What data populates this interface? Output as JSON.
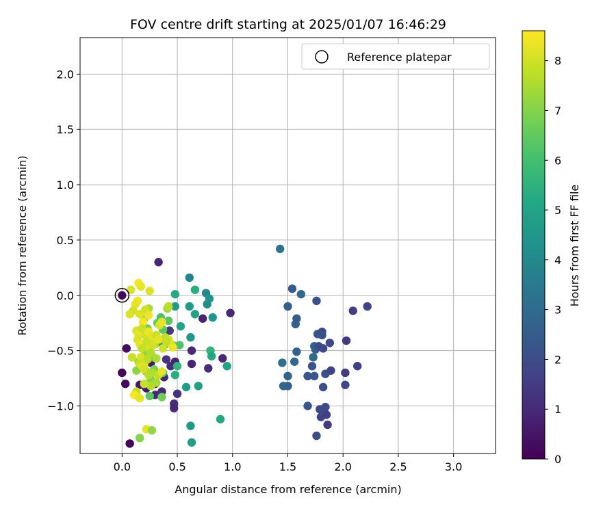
{
  "chart_data": {
    "type": "scatter",
    "title": "FOV centre drift starting at 2025/01/07 16:46:29",
    "xlabel": "Angular distance from reference (arcmin)",
    "ylabel": "Rotation from reference (arcmin)",
    "xlim": [
      -0.38,
      3.38
    ],
    "ylim": [
      -1.43,
      2.33
    ],
    "xticks": [
      0.0,
      0.5,
      1.0,
      1.5,
      2.0,
      2.5,
      3.0
    ],
    "xtick_labels": [
      "0.0",
      "0.5",
      "1.0",
      "1.5",
      "2.0",
      "2.5",
      "3.0"
    ],
    "yticks": [
      -1.0,
      -0.5,
      0.0,
      0.5,
      1.0,
      1.5,
      2.0
    ],
    "ytick_labels": [
      "−1.0",
      "−0.5",
      "0.0",
      "0.5",
      "1.0",
      "1.5",
      "2.0"
    ],
    "grid": true,
    "legend": {
      "placement": "upper-right",
      "entries": [
        "Reference platepar"
      ]
    },
    "colormap": "viridis",
    "colorbar": {
      "label": "Hours from first FF file",
      "min": 0,
      "max": 8.6,
      "ticks": [
        0,
        1,
        2,
        3,
        4,
        5,
        6,
        7,
        8
      ],
      "tick_labels": [
        "0",
        "1",
        "2",
        "3",
        "4",
        "5",
        "6",
        "7",
        "8"
      ]
    },
    "reference_point": {
      "x": 0.0,
      "y": 0.0
    },
    "points": [
      {
        "x": 0.0,
        "y": 0.0,
        "c": 0.2
      },
      {
        "x": 0.0,
        "y": -0.7,
        "c": 0.1
      },
      {
        "x": 0.03,
        "y": -0.8,
        "c": 0.2
      },
      {
        "x": 0.04,
        "y": -0.48,
        "c": 0.3
      },
      {
        "x": 0.07,
        "y": -1.34,
        "c": 0.1
      },
      {
        "x": 0.12,
        "y": -0.9,
        "c": 0.3
      },
      {
        "x": 0.16,
        "y": -0.81,
        "c": 0.5
      },
      {
        "x": 0.22,
        "y": -0.84,
        "c": 0.6
      },
      {
        "x": 0.26,
        "y": -0.61,
        "c": 0.6
      },
      {
        "x": 0.3,
        "y": -0.8,
        "c": 0.7
      },
      {
        "x": 0.33,
        "y": 0.3,
        "c": 0.9
      },
      {
        "x": 0.36,
        "y": -0.87,
        "c": 1.0
      },
      {
        "x": 0.38,
        "y": -0.74,
        "c": 0.9
      },
      {
        "x": 0.4,
        "y": -0.58,
        "c": 1.2
      },
      {
        "x": 0.44,
        "y": -0.64,
        "c": 1.1
      },
      {
        "x": 0.47,
        "y": -0.98,
        "c": 1.1
      },
      {
        "x": 0.47,
        "y": -1.02,
        "c": 1.0
      },
      {
        "x": 0.48,
        "y": -0.6,
        "c": 0.8
      },
      {
        "x": 0.5,
        "y": -0.89,
        "c": 1.3
      },
      {
        "x": 0.63,
        "y": -0.5,
        "c": 1.0
      },
      {
        "x": 0.63,
        "y": -0.62,
        "c": 0.9
      },
      {
        "x": 0.73,
        "y": -0.21,
        "c": 0.8
      },
      {
        "x": 0.78,
        "y": -0.66,
        "c": 1.1
      },
      {
        "x": 0.91,
        "y": -0.57,
        "c": 1.0
      },
      {
        "x": 0.98,
        "y": -0.16,
        "c": 1.0
      },
      {
        "x": 0.3,
        "y": -0.9,
        "c": 1.0
      },
      {
        "x": 0.34,
        "y": -0.42,
        "c": 1.3
      },
      {
        "x": 0.43,
        "y": -0.32,
        "c": 1.4
      },
      {
        "x": 0.58,
        "y": -0.83,
        "c": 4.8
      },
      {
        "x": 0.61,
        "y": 0.16,
        "c": 3.9
      },
      {
        "x": 0.62,
        "y": -0.38,
        "c": 4.5
      },
      {
        "x": 0.62,
        "y": -1.18,
        "c": 4.6
      },
      {
        "x": 0.63,
        "y": -1.33,
        "c": 4.8
      },
      {
        "x": 0.66,
        "y": 0.05,
        "c": 5.4
      },
      {
        "x": 0.66,
        "y": -0.17,
        "c": 5.0
      },
      {
        "x": 0.69,
        "y": -0.82,
        "c": 4.9
      },
      {
        "x": 0.76,
        "y": 0.02,
        "c": 4.0
      },
      {
        "x": 0.77,
        "y": -0.08,
        "c": 4.2
      },
      {
        "x": 0.79,
        "y": -0.03,
        "c": 4.4
      },
      {
        "x": 0.8,
        "y": -0.5,
        "c": 5.6
      },
      {
        "x": 0.81,
        "y": -0.55,
        "c": 5.2
      },
      {
        "x": 0.82,
        "y": -0.2,
        "c": 4.4
      },
      {
        "x": 0.89,
        "y": -1.12,
        "c": 5.2
      },
      {
        "x": 0.95,
        "y": -0.64,
        "c": 5.0
      },
      {
        "x": 0.61,
        "y": -0.1,
        "c": 4.6
      },
      {
        "x": 0.53,
        "y": -0.28,
        "c": 5.0
      },
      {
        "x": 0.48,
        "y": 0.01,
        "c": 5.2
      },
      {
        "x": 0.48,
        "y": -0.1,
        "c": 4.6
      },
      {
        "x": 0.5,
        "y": -0.64,
        "c": 5.6
      },
      {
        "x": 0.48,
        "y": -0.72,
        "c": 5.4
      },
      {
        "x": 0.38,
        "y": -0.45,
        "c": 5.0
      },
      {
        "x": 0.37,
        "y": -0.7,
        "c": 5.8
      },
      {
        "x": 0.16,
        "y": -1.29,
        "c": 7.0
      },
      {
        "x": 0.22,
        "y": -1.21,
        "c": 8.3
      },
      {
        "x": 0.27,
        "y": -1.22,
        "c": 7.2
      },
      {
        "x": 0.23,
        "y": -0.3,
        "c": 6.8
      },
      {
        "x": 0.2,
        "y": -0.21,
        "c": 6.9
      },
      {
        "x": 0.28,
        "y": -0.56,
        "c": 6.2
      },
      {
        "x": 0.32,
        "y": -0.25,
        "c": 6.5
      },
      {
        "x": 0.35,
        "y": -0.2,
        "c": 6.1
      },
      {
        "x": 0.37,
        "y": -0.31,
        "c": 6.4
      },
      {
        "x": 0.42,
        "y": -0.23,
        "c": 6.3
      },
      {
        "x": 0.46,
        "y": -0.45,
        "c": 6.8
      },
      {
        "x": 0.52,
        "y": -0.45,
        "c": 6.2
      },
      {
        "x": 0.22,
        "y": -0.69,
        "c": 6.6
      },
      {
        "x": 0.25,
        "y": -0.91,
        "c": 6.4
      },
      {
        "x": 0.36,
        "y": -0.92,
        "c": 6.7
      },
      {
        "x": 0.26,
        "y": -0.76,
        "c": 7.0
      },
      {
        "x": 0.3,
        "y": -0.44,
        "c": 7.2
      },
      {
        "x": 0.41,
        "y": -0.12,
        "c": 7.4
      },
      {
        "x": 0.24,
        "y": -0.12,
        "c": 7.5
      },
      {
        "x": 0.13,
        "y": -0.68,
        "c": 7.1
      },
      {
        "x": 0.15,
        "y": -0.6,
        "c": 7.3
      },
      {
        "x": 0.21,
        "y": -0.53,
        "c": 7.2
      },
      {
        "x": 0.29,
        "y": -0.67,
        "c": 6.9
      },
      {
        "x": 0.08,
        "y": 0.05,
        "c": 8.1
      },
      {
        "x": 0.15,
        "y": 0.11,
        "c": 8.5
      },
      {
        "x": 0.17,
        "y": 0.08,
        "c": 8.3
      },
      {
        "x": 0.25,
        "y": 0.04,
        "c": 8.2
      },
      {
        "x": 0.14,
        "y": -0.05,
        "c": 8.4
      },
      {
        "x": 0.12,
        "y": -0.08,
        "c": 8.3
      },
      {
        "x": 0.1,
        "y": -0.14,
        "c": 8.0
      },
      {
        "x": 0.07,
        "y": -0.17,
        "c": 8.1
      },
      {
        "x": 0.16,
        "y": -0.17,
        "c": 8.2
      },
      {
        "x": 0.21,
        "y": -0.13,
        "c": 8.0
      },
      {
        "x": 0.24,
        "y": -0.18,
        "c": 8.4
      },
      {
        "x": 0.19,
        "y": -0.24,
        "c": 8.5
      },
      {
        "x": 0.13,
        "y": -0.32,
        "c": 8.2
      },
      {
        "x": 0.15,
        "y": -0.36,
        "c": 8.3
      },
      {
        "x": 0.18,
        "y": -0.3,
        "c": 7.9
      },
      {
        "x": 0.21,
        "y": -0.36,
        "c": 8.0
      },
      {
        "x": 0.24,
        "y": -0.33,
        "c": 8.4
      },
      {
        "x": 0.27,
        "y": -0.38,
        "c": 8.2
      },
      {
        "x": 0.31,
        "y": -0.36,
        "c": 7.9
      },
      {
        "x": 0.34,
        "y": -0.27,
        "c": 8.1
      },
      {
        "x": 0.36,
        "y": -0.24,
        "c": 8.3
      },
      {
        "x": 0.39,
        "y": -0.38,
        "c": 7.8
      },
      {
        "x": 0.42,
        "y": -0.4,
        "c": 8.0
      },
      {
        "x": 0.44,
        "y": -0.44,
        "c": 8.2
      },
      {
        "x": 0.46,
        "y": -0.47,
        "c": 8.4
      },
      {
        "x": 0.14,
        "y": -0.4,
        "c": 8.1
      },
      {
        "x": 0.16,
        "y": -0.44,
        "c": 8.3
      },
      {
        "x": 0.19,
        "y": -0.46,
        "c": 8.5
      },
      {
        "x": 0.22,
        "y": -0.42,
        "c": 7.9
      },
      {
        "x": 0.25,
        "y": -0.48,
        "c": 8.2
      },
      {
        "x": 0.28,
        "y": -0.45,
        "c": 8.0
      },
      {
        "x": 0.33,
        "y": -0.4,
        "c": 8.3
      },
      {
        "x": 0.37,
        "y": -0.48,
        "c": 8.0
      },
      {
        "x": 0.4,
        "y": -0.42,
        "c": 7.8
      },
      {
        "x": 0.09,
        "y": -0.56,
        "c": 7.9
      },
      {
        "x": 0.17,
        "y": -0.56,
        "c": 8.1
      },
      {
        "x": 0.2,
        "y": -0.62,
        "c": 8.4
      },
      {
        "x": 0.23,
        "y": -0.58,
        "c": 7.7
      },
      {
        "x": 0.26,
        "y": -0.52,
        "c": 7.6
      },
      {
        "x": 0.31,
        "y": -0.57,
        "c": 7.5
      },
      {
        "x": 0.16,
        "y": -0.62,
        "c": 7.9
      },
      {
        "x": 0.18,
        "y": -0.64,
        "c": 8.2
      },
      {
        "x": 0.2,
        "y": -0.67,
        "c": 8.0
      },
      {
        "x": 0.24,
        "y": -0.72,
        "c": 7.7
      },
      {
        "x": 0.27,
        "y": -0.7,
        "c": 7.6
      },
      {
        "x": 0.33,
        "y": -0.72,
        "c": 7.8
      },
      {
        "x": 0.36,
        "y": -0.69,
        "c": 8.3
      },
      {
        "x": 0.26,
        "y": -0.82,
        "c": 7.6
      },
      {
        "x": 0.31,
        "y": -0.79,
        "c": 7.5
      },
      {
        "x": 0.13,
        "y": -0.87,
        "c": 7.8
      },
      {
        "x": 0.11,
        "y": -0.9,
        "c": 8.5
      },
      {
        "x": 0.16,
        "y": -0.93,
        "c": 8.3
      },
      {
        "x": 0.18,
        "y": -0.48,
        "c": 7.8
      },
      {
        "x": 0.42,
        "y": -0.1,
        "c": 7.7
      },
      {
        "x": 0.2,
        "y": -0.8,
        "c": 7.9
      },
      {
        "x": 1.43,
        "y": 0.42,
        "c": 3.3
      },
      {
        "x": 1.45,
        "y": -0.61,
        "c": 3.1
      },
      {
        "x": 1.46,
        "y": -0.82,
        "c": 2.9
      },
      {
        "x": 1.5,
        "y": -0.1,
        "c": 2.6
      },
      {
        "x": 1.5,
        "y": -0.73,
        "c": 2.8
      },
      {
        "x": 1.5,
        "y": -0.82,
        "c": 2.7
      },
      {
        "x": 1.54,
        "y": 0.06,
        "c": 2.4
      },
      {
        "x": 1.56,
        "y": -0.6,
        "c": 2.9
      },
      {
        "x": 1.57,
        "y": -0.26,
        "c": 2.6
      },
      {
        "x": 1.58,
        "y": -0.21,
        "c": 2.5
      },
      {
        "x": 1.58,
        "y": -0.51,
        "c": 2.6
      },
      {
        "x": 1.62,
        "y": 0.01,
        "c": 2.9
      },
      {
        "x": 1.68,
        "y": -0.73,
        "c": 2.3
      },
      {
        "x": 1.68,
        "y": -1.0,
        "c": 2.3
      },
      {
        "x": 1.72,
        "y": -0.64,
        "c": 2.2
      },
      {
        "x": 1.73,
        "y": -0.56,
        "c": 3.0
      },
      {
        "x": 1.74,
        "y": -0.46,
        "c": 2.8
      },
      {
        "x": 1.74,
        "y": -0.73,
        "c": 2.3
      },
      {
        "x": 1.75,
        "y": -0.49,
        "c": 2.6
      },
      {
        "x": 1.76,
        "y": -0.05,
        "c": 2.1
      },
      {
        "x": 1.76,
        "y": -1.27,
        "c": 2.0
      },
      {
        "x": 1.77,
        "y": -0.35,
        "c": 2.2
      },
      {
        "x": 1.78,
        "y": -0.46,
        "c": 2.0
      },
      {
        "x": 1.79,
        "y": -1.03,
        "c": 1.9
      },
      {
        "x": 1.8,
        "y": -1.1,
        "c": 1.7
      },
      {
        "x": 1.81,
        "y": -0.33,
        "c": 1.9
      },
      {
        "x": 1.81,
        "y": -0.36,
        "c": 2.2
      },
      {
        "x": 1.82,
        "y": -0.48,
        "c": 1.8
      },
      {
        "x": 1.82,
        "y": -0.83,
        "c": 2.1
      },
      {
        "x": 1.83,
        "y": -1.06,
        "c": 2.0
      },
      {
        "x": 1.84,
        "y": -0.71,
        "c": 2.1
      },
      {
        "x": 1.84,
        "y": -1.01,
        "c": 1.8
      },
      {
        "x": 1.85,
        "y": -1.08,
        "c": 1.6
      },
      {
        "x": 1.86,
        "y": -1.17,
        "c": 1.5
      },
      {
        "x": 1.88,
        "y": -0.43,
        "c": 1.8
      },
      {
        "x": 1.89,
        "y": -0.68,
        "c": 1.7
      },
      {
        "x": 2.02,
        "y": -0.7,
        "c": 1.5
      },
      {
        "x": 2.02,
        "y": -0.81,
        "c": 1.8
      },
      {
        "x": 2.03,
        "y": -0.41,
        "c": 1.4
      },
      {
        "x": 2.09,
        "y": -0.14,
        "c": 1.5
      },
      {
        "x": 2.13,
        "y": -0.64,
        "c": 1.6
      },
      {
        "x": 2.22,
        "y": -0.1,
        "c": 1.7
      }
    ]
  }
}
